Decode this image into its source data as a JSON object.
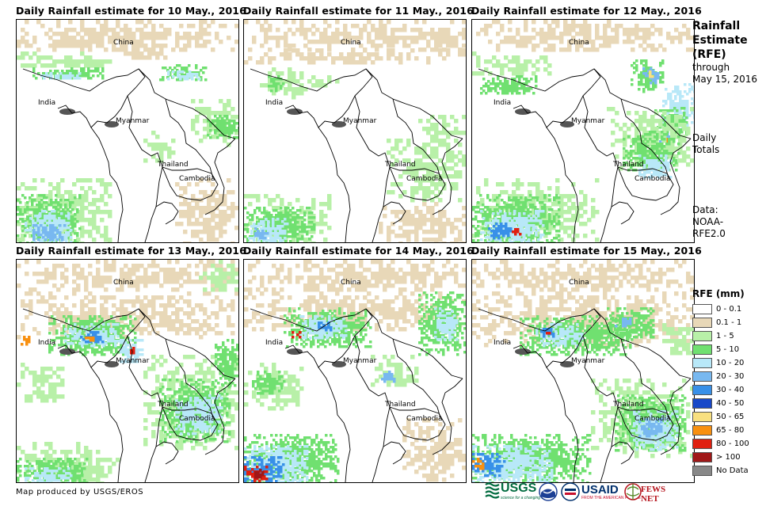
{
  "panels": [
    {
      "title": "Daily Rainfall estimate for 10 May., 2016",
      "day": 10
    },
    {
      "title": "Daily Rainfall estimate for 11 May., 2016",
      "day": 11
    },
    {
      "title": "Daily Rainfall estimate for 12 May., 2016",
      "day": 12
    },
    {
      "title": "Daily Rainfall estimate for 13 May., 2016",
      "day": 13
    },
    {
      "title": "Daily Rainfall estimate for 14 May., 2016",
      "day": 14
    },
    {
      "title": "Daily Rainfall estimate for 15 May., 2016",
      "day": 15
    }
  ],
  "places": {
    "china": "China",
    "india": "India",
    "myanmar": "Myanmar",
    "thailand": "Thailand",
    "cambodia": "Cambodia"
  },
  "side": {
    "title_line1": "Rainfall",
    "title_line2": "Estimate",
    "title_line3": "(RFE)",
    "through_line1": "through",
    "through_line2": "May 15, 2016",
    "totals_line1": "Daily",
    "totals_line2": "Totals",
    "data_line1": "Data:",
    "data_line2": "NOAA-",
    "data_line3": "RFE2.0"
  },
  "legend": {
    "title": "RFE (mm)",
    "items": [
      {
        "label": "0 - 0.1",
        "color": "#ffffff"
      },
      {
        "label": "0.1 - 1",
        "color": "#e8d8b8"
      },
      {
        "label": "1 - 5",
        "color": "#b8f0a8"
      },
      {
        "label": "5 - 10",
        "color": "#70e070"
      },
      {
        "label": "10 - 20",
        "color": "#b8e8f8"
      },
      {
        "label": "20 - 30",
        "color": "#78b8f0"
      },
      {
        "label": "30 - 40",
        "color": "#3890e8"
      },
      {
        "label": "40 - 50",
        "color": "#1848c8"
      },
      {
        "label": "50 - 65",
        "color": "#f8e080"
      },
      {
        "label": "65 - 80",
        "color": "#f89010"
      },
      {
        "label": "80 - 100",
        "color": "#e02010"
      },
      {
        "label": "> 100",
        "color": "#a01818"
      },
      {
        "label": "No Data",
        "color": "#888888"
      }
    ]
  },
  "credit": "Map produced by USGS/EROS",
  "logos": {
    "usgs": "USGS",
    "usgs_tagline": "science for a changing world",
    "usaid": "USAID",
    "usaid_tagline": "FROM THE AMERICAN PEOPLE",
    "fews": "FEWS NET"
  }
}
